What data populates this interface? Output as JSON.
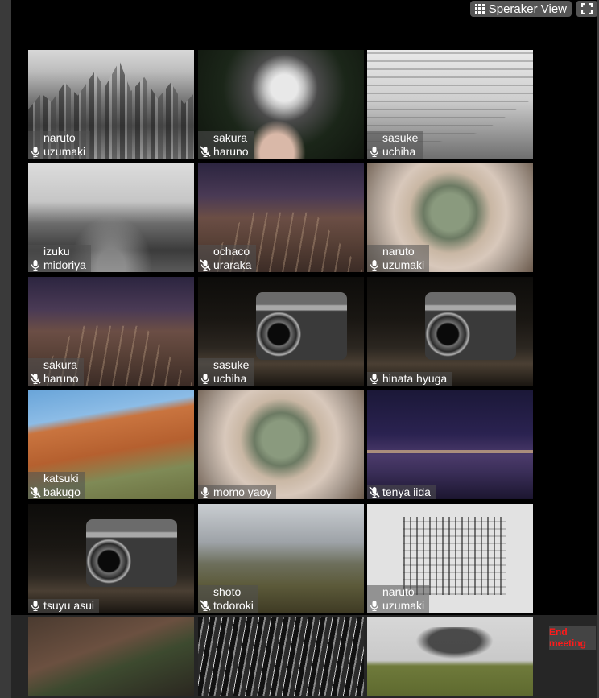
{
  "header": {
    "view_button_label": "Speraker View",
    "view_icon": "grid-icon",
    "fullscreen_icon": "expand-icon"
  },
  "footer": {
    "end_meeting_line1": "End",
    "end_meeting_line2": "meeting",
    "end_meeting_color": "#ff1a1a"
  },
  "participants": [
    {
      "name_line1": "naruto",
      "name_line2": "uzumaki",
      "muted": false
    },
    {
      "name_line1": "sakura",
      "name_line2": "haruno",
      "muted": true
    },
    {
      "name_line1": "sasuke",
      "name_line2": "uchiha",
      "muted": false
    },
    {
      "name_line1": "izuku",
      "name_line2": "midoriya",
      "muted": false
    },
    {
      "name_line1": "ochaco",
      "name_line2": "uraraka",
      "muted": true
    },
    {
      "name_line1": "naruto",
      "name_line2": "uzumaki",
      "muted": false
    },
    {
      "name_line1": "sakura",
      "name_line2": "haruno",
      "muted": true
    },
    {
      "name_line1": "sasuke",
      "name_line2": "uchiha",
      "muted": false
    },
    {
      "name_line1": "hinata hyuga",
      "name_line2": "",
      "muted": false
    },
    {
      "name_line1": "katsuki",
      "name_line2": "bakugo",
      "muted": true
    },
    {
      "name_line1": "momo yaoy",
      "name_line2": "",
      "muted": false
    },
    {
      "name_line1": "tenya iida",
      "name_line2": "",
      "muted": true
    },
    {
      "name_line1": "tsuyu asui",
      "name_line2": "",
      "muted": false
    },
    {
      "name_line1": "shoto",
      "name_line2": "todoroki",
      "muted": true
    },
    {
      "name_line1": "naruto",
      "name_line2": "uzumaki",
      "muted": false
    }
  ]
}
